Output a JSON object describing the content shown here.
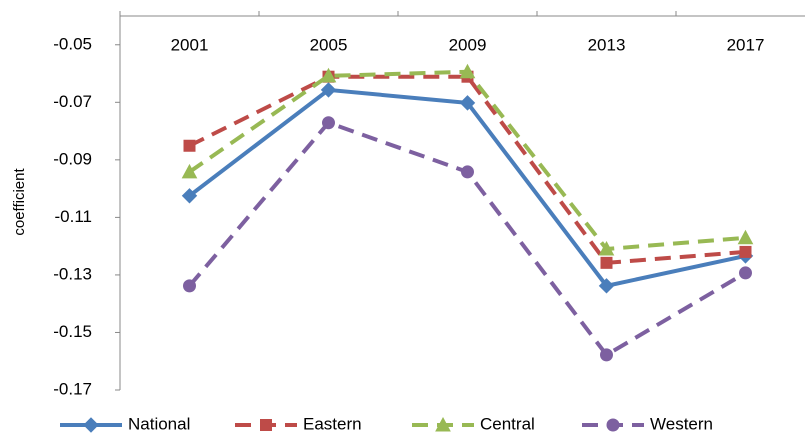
{
  "chart_data": {
    "type": "line",
    "y_label": "coefficient",
    "categories": [
      "2001",
      "2005",
      "2009",
      "2013",
      "2017"
    ],
    "series": [
      {
        "name": "National",
        "color": "#4a7ebb",
        "marker": "diamond",
        "dashed": false,
        "values": [
          -0.1025,
          -0.0657,
          -0.0702,
          -0.1338,
          -0.1234
        ]
      },
      {
        "name": "Eastern",
        "color": "#be4b48",
        "marker": "square",
        "dashed": true,
        "values": [
          -0.0851,
          -0.0611,
          -0.0611,
          -0.1258,
          -0.122
        ]
      },
      {
        "name": "Central",
        "color": "#98b954",
        "marker": "triangle",
        "dashed": true,
        "values": [
          -0.0942,
          -0.0608,
          -0.0594,
          -0.121,
          -0.1171
        ]
      },
      {
        "name": "Western",
        "color": "#7d60a0",
        "marker": "circle",
        "dashed": true,
        "values": [
          -0.1338,
          -0.0771,
          -0.0942,
          -0.1578,
          -0.1293
        ]
      }
    ],
    "ylim": [
      -0.17,
      -0.04
    ],
    "yticks": [
      -0.05,
      -0.07,
      -0.09,
      -0.11,
      -0.13,
      -0.15,
      -0.17
    ],
    "grid": false
  }
}
